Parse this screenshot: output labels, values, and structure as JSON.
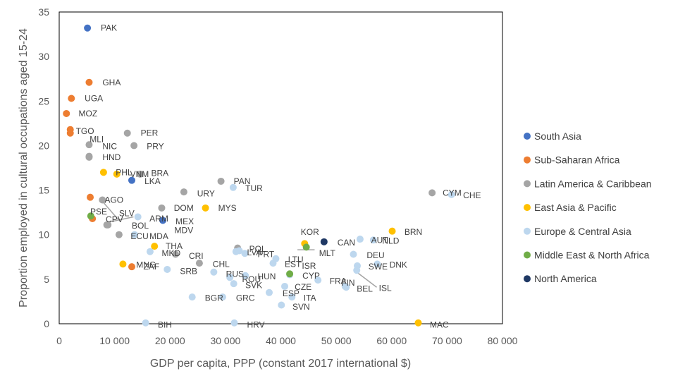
{
  "chart_data": {
    "type": "scatter",
    "title": "",
    "xlabel": "GDP per capita, PPP (constant 2017 international $)",
    "ylabel": "Proportion employed in cultural occupations aged 15-24",
    "xlim": [
      0,
      80000
    ],
    "ylim": [
      0,
      35
    ],
    "xticks": [
      0,
      10000,
      20000,
      30000,
      40000,
      50000,
      60000,
      70000,
      80000
    ],
    "xtick_labels": [
      "0",
      "10 000",
      "20 000",
      "30 000",
      "40 000",
      "50 000",
      "60 000",
      "70 000",
      "80 000"
    ],
    "yticks": [
      0,
      5,
      10,
      15,
      20,
      25,
      30,
      35
    ],
    "ytick_labels": [
      "0",
      "5",
      "10",
      "15",
      "20",
      "25",
      "30",
      "35"
    ],
    "grid": false,
    "legend_position": "right",
    "series": [
      {
        "name": "South Asia",
        "color": "#4472C4",
        "points": [
          {
            "label": "PAK",
            "x": 5100,
            "y": 33.2
          },
          {
            "label": "LKA",
            "x": 13100,
            "y": 16.1
          },
          {
            "label": "MDV",
            "x": 18700,
            "y": 11.6
          }
        ]
      },
      {
        "name": "Sub-Saharan Africa",
        "color": "#ED7D31",
        "points": [
          {
            "label": "GHA",
            "x": 5400,
            "y": 27.1
          },
          {
            "label": "UGA",
            "x": 2200,
            "y": 25.3
          },
          {
            "label": "MOZ",
            "x": 1300,
            "y": 23.6
          },
          {
            "label": "TGO",
            "x": 2000,
            "y": 21.8
          },
          {
            "label": "",
            "x": 2000,
            "y": 21.4
          },
          {
            "label": "",
            "x": 5600,
            "y": 14.2
          },
          {
            "label": "CPV",
            "x": 6000,
            "y": 11.8
          },
          {
            "label": "ZAF",
            "x": 13100,
            "y": 6.4
          }
        ]
      },
      {
        "name": "Latin America & Caribbean",
        "color": "#A5A5A5",
        "points": [
          {
            "label": "PER",
            "x": 12300,
            "y": 21.4
          },
          {
            "label": "MLI",
            "x": 5400,
            "y": 20.1
          },
          {
            "label": "PRY",
            "x": 13500,
            "y": 20.0
          },
          {
            "label": "NIC",
            "x": 5400,
            "y": 18.8
          },
          {
            "label": "HND",
            "x": 5400,
            "y": 18.7
          },
          {
            "label": "BRA",
            "x": 14600,
            "y": 16.8
          },
          {
            "label": "PAN",
            "x": 29200,
            "y": 16.0
          },
          {
            "label": "URY",
            "x": 22500,
            "y": 14.8
          },
          {
            "label": "CYM",
            "x": 67300,
            "y": 14.7
          },
          {
            "label": "AGO",
            "x": 7800,
            "y": 13.9
          },
          {
            "label": "DOM",
            "x": 18500,
            "y": 13.0
          },
          {
            "label": "SLV",
            "x": 8600,
            "y": 11.1
          },
          {
            "label": "BOL",
            "x": 8800,
            "y": 11.1
          },
          {
            "label": "ECU",
            "x": 10800,
            "y": 10.0
          },
          {
            "label": "CRI",
            "x": 21000,
            "y": 7.8
          },
          {
            "label": "CHL",
            "x": 25300,
            "y": 6.8
          },
          {
            "label": "",
            "x": 32200,
            "y": 8.5
          }
        ]
      },
      {
        "name": "East Asia & Pacific",
        "color": "#FFC000",
        "points": [
          {
            "label": "PHL",
            "x": 8000,
            "y": 17.0
          },
          {
            "label": "VNM",
            "x": 10400,
            "y": 16.8
          },
          {
            "label": "MYS",
            "x": 26400,
            "y": 13.0
          },
          {
            "label": "BRN",
            "x": 60100,
            "y": 10.4
          },
          {
            "label": "KOR",
            "x": 44300,
            "y": 9.0
          },
          {
            "label": "THA",
            "x": 17200,
            "y": 8.7
          },
          {
            "label": "MNG",
            "x": 11500,
            "y": 6.7
          },
          {
            "label": "MAC",
            "x": 64800,
            "y": 0.1
          }
        ]
      },
      {
        "name": "Europe & Central Asia",
        "color": "#BDD7EE",
        "points": [
          {
            "label": "CHE",
            "x": 70800,
            "y": 14.5
          },
          {
            "label": "TUR",
            "x": 31400,
            "y": 15.3
          },
          {
            "label": "ARM",
            "x": 14200,
            "y": 12.0
          },
          {
            "label": "MDA",
            "x": 13600,
            "y": 10.0
          },
          {
            "label": "AUT",
            "x": 54300,
            "y": 9.5
          },
          {
            "label": "NLD",
            "x": 56700,
            "y": 9.4
          },
          {
            "label": "MKD",
            "x": 16400,
            "y": 8.1
          },
          {
            "label": "POL",
            "x": 32500,
            "y": 8.2
          },
          {
            "label": "LVA",
            "x": 31900,
            "y": 8.1
          },
          {
            "label": "PRT",
            "x": 33500,
            "y": 7.9
          },
          {
            "label": "DEU",
            "x": 53100,
            "y": 7.8
          },
          {
            "label": "LTU",
            "x": 39100,
            "y": 7.3
          },
          {
            "label": "",
            "x": 38600,
            "y": 6.8
          },
          {
            "label": "DNK",
            "x": 57400,
            "y": 6.7
          },
          {
            "label": "SWE",
            "x": 53800,
            "y": 6.5
          },
          {
            "label": "ISL",
            "x": 53700,
            "y": 6.0
          },
          {
            "label": "SRB",
            "x": 19500,
            "y": 6.1
          },
          {
            "label": "RUS",
            "x": 27900,
            "y": 5.8
          },
          {
            "label": "HUN",
            "x": 33600,
            "y": 5.4
          },
          {
            "label": "CYP",
            "x": 41600,
            "y": 5.5
          },
          {
            "label": "ROU",
            "x": 30800,
            "y": 5.2
          },
          {
            "label": "FRA",
            "x": 46700,
            "y": 4.9
          },
          {
            "label": "SVK",
            "x": 31500,
            "y": 4.5
          },
          {
            "label": "CZE",
            "x": 40700,
            "y": 4.2
          },
          {
            "label": "FIN",
            "x": 51600,
            "y": 4.2
          },
          {
            "label": "BEL",
            "x": 51800,
            "y": 4.1
          },
          {
            "label": "ESP",
            "x": 37900,
            "y": 3.5
          },
          {
            "label": "ITA",
            "x": 42000,
            "y": 3.0
          },
          {
            "label": "BGR",
            "x": 24000,
            "y": 3.0
          },
          {
            "label": "GRC",
            "x": 29500,
            "y": 3.0
          },
          {
            "label": "SVN",
            "x": 40100,
            "y": 2.1
          },
          {
            "label": "BIH",
            "x": 15600,
            "y": 0.1
          },
          {
            "label": "HRV",
            "x": 31600,
            "y": 0.1
          }
        ]
      },
      {
        "name": "Middle East & North Africa",
        "color": "#70AD47",
        "points": [
          {
            "label": "PSE",
            "x": 5700,
            "y": 12.1
          },
          {
            "label": "",
            "x": 44600,
            "y": 8.6
          },
          {
            "label": "",
            "x": 41600,
            "y": 5.6
          }
        ]
      },
      {
        "name": "North America",
        "color": "#1F3864",
        "points": [
          {
            "label": "CAN",
            "x": 47800,
            "y": 9.2
          }
        ]
      }
    ]
  },
  "annotation_labels": [
    {
      "text": "PAK",
      "x": 7500,
      "y": 33.2
    },
    {
      "text": "GHA",
      "x": 7800,
      "y": 27.1
    },
    {
      "text": "UGA",
      "x": 4600,
      "y": 25.3
    },
    {
      "text": "MOZ",
      "x": 3500,
      "y": 23.6
    },
    {
      "text": "TGO",
      "x": 3000,
      "y": 21.6
    },
    {
      "text": "PER",
      "x": 14700,
      "y": 21.4
    },
    {
      "text": "MLI",
      "x": 5500,
      "y": 20.7
    },
    {
      "text": "PRY",
      "x": 15800,
      "y": 19.9
    },
    {
      "text": "NIC",
      "x": 7800,
      "y": 19.9
    },
    {
      "text": "HND",
      "x": 7800,
      "y": 18.7
    },
    {
      "text": "PHL",
      "x": 10200,
      "y": 17.0
    },
    {
      "text": "VNM",
      "x": 12800,
      "y": 16.8
    },
    {
      "text": "BRA",
      "x": 16600,
      "y": 16.9
    },
    {
      "text": "LKA",
      "x": 15400,
      "y": 16.0
    },
    {
      "text": "PAN",
      "x": 31500,
      "y": 16.0
    },
    {
      "text": "URY",
      "x": 24900,
      "y": 14.6
    },
    {
      "text": "TUR",
      "x": 33600,
      "y": 15.2
    },
    {
      "text": "CYM",
      "x": 69200,
      "y": 14.7
    },
    {
      "text": "CHE",
      "x": 72900,
      "y": 14.4
    },
    {
      "text": "AGO",
      "x": 8200,
      "y": 13.9
    },
    {
      "text": "DOM",
      "x": 20700,
      "y": 13.0
    },
    {
      "text": "MYS",
      "x": 28700,
      "y": 13.0
    },
    {
      "text": "PSE",
      "x": 5600,
      "y": 12.6
    },
    {
      "text": "SLV",
      "x": 10800,
      "y": 12.4
    },
    {
      "text": "CPV",
      "x": 8400,
      "y": 11.7
    },
    {
      "text": "ARM",
      "x": 16300,
      "y": 11.8
    },
    {
      "text": "MEX",
      "x": 21000,
      "y": 11.5
    },
    {
      "text": "BOL",
      "x": 13100,
      "y": 11.0
    },
    {
      "text": "MDV",
      "x": 20800,
      "y": 10.5
    },
    {
      "text": "ECU",
      "x": 12900,
      "y": 9.8
    },
    {
      "text": "MDA",
      "x": 16300,
      "y": 9.8
    },
    {
      "text": "KOR",
      "x": 43600,
      "y": 10.3
    },
    {
      "text": "BRN",
      "x": 62300,
      "y": 10.3
    },
    {
      "text": "CAN",
      "x": 50200,
      "y": 9.1
    },
    {
      "text": "AUT",
      "x": 56300,
      "y": 9.4
    },
    {
      "text": "NLD",
      "x": 58300,
      "y": 9.3
    },
    {
      "text": "THA",
      "x": 19200,
      "y": 8.7
    },
    {
      "text": "MKD",
      "x": 18500,
      "y": 7.9
    },
    {
      "text": "POL",
      "x": 34300,
      "y": 8.4
    },
    {
      "text": "LVA",
      "x": 33900,
      "y": 8.0
    },
    {
      "text": "PRT",
      "x": 35800,
      "y": 7.8
    },
    {
      "text": "MLT",
      "x": 46900,
      "y": 7.9
    },
    {
      "text": "DEU",
      "x": 55500,
      "y": 7.7
    },
    {
      "text": "CRI",
      "x": 23400,
      "y": 7.6
    },
    {
      "text": "LTU",
      "x": 41300,
      "y": 7.2
    },
    {
      "text": "EST",
      "x": 40700,
      "y": 6.7
    },
    {
      "text": "ISR",
      "x": 43800,
      "y": 6.5
    },
    {
      "text": "DNK",
      "x": 59600,
      "y": 6.6
    },
    {
      "text": "SWE",
      "x": 55800,
      "y": 6.4
    },
    {
      "text": "MNG",
      "x": 13900,
      "y": 6.6
    },
    {
      "text": "ZAF",
      "x": 15200,
      "y": 6.4
    },
    {
      "text": "CHL",
      "x": 27700,
      "y": 6.7
    },
    {
      "text": "SRB",
      "x": 21800,
      "y": 5.9
    },
    {
      "text": "RUS",
      "x": 30100,
      "y": 5.6
    },
    {
      "text": "HUN",
      "x": 35800,
      "y": 5.3
    },
    {
      "text": "CYP",
      "x": 43900,
      "y": 5.4
    },
    {
      "text": "ROU",
      "x": 33000,
      "y": 5.0
    },
    {
      "text": "FRA",
      "x": 48800,
      "y": 4.8
    },
    {
      "text": "ISL",
      "x": 57700,
      "y": 4.0
    },
    {
      "text": "SVK",
      "x": 33600,
      "y": 4.3
    },
    {
      "text": "CZE",
      "x": 42500,
      "y": 4.1
    },
    {
      "text": "FIN",
      "x": 50900,
      "y": 4.6
    },
    {
      "text": "BEL",
      "x": 53700,
      "y": 3.9
    },
    {
      "text": "ESP",
      "x": 40300,
      "y": 3.4
    },
    {
      "text": "ITA",
      "x": 44100,
      "y": 2.9
    },
    {
      "text": "BGR",
      "x": 26300,
      "y": 2.9
    },
    {
      "text": "GRC",
      "x": 31900,
      "y": 2.9
    },
    {
      "text": "SVN",
      "x": 42100,
      "y": 1.9
    },
    {
      "text": "BIH",
      "x": 17800,
      "y": -0.1
    },
    {
      "text": "HRV",
      "x": 33900,
      "y": -0.1
    },
    {
      "text": "MAC",
      "x": 66900,
      "y": -0.1
    }
  ],
  "leader_lines": [
    {
      "x1": 8000,
      "y1": 13.6,
      "x2": 10800,
      "y2": 11.6
    },
    {
      "x1": 8900,
      "y1": 11.4,
      "x2": 13400,
      "y2": 12.0
    },
    {
      "x1": 43000,
      "y1": 8.3,
      "x2": 46100,
      "y2": 8.3
    },
    {
      "x1": 53900,
      "y1": 5.7,
      "x2": 57300,
      "y2": 4.1
    }
  ]
}
